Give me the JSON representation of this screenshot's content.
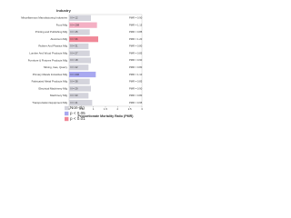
{
  "chart_data": {
    "type": "bar",
    "orientation": "horizontal",
    "title": "Industry",
    "x_label": "Proportionate Mortality Ratio (PMR)",
    "categories": [
      "Miscellaneous Manufacturing Industries",
      "Food Mfg",
      "Printing and Publishing Mfg",
      "Aluminum Mfg",
      "Rubber And Plastics Mfg",
      "Lumber And Wood Products Mfg",
      "Furniture & Fixtures Products Mfg",
      "Mining, Gas, Quarry",
      "Primary Metals Industries Mfg",
      "Fabricated Metal Products Mfg",
      "Electrical Machinery Mfg",
      "Machinery Mfg",
      "Transportation Equipment Mfg"
    ],
    "values": [
      0.9,
      1.15,
      0.85,
      1.2,
      0.8,
      0.85,
      0.9,
      0.8,
      1.1,
      0.85,
      0.9,
      0.8,
      0.95
    ],
    "value_labels": [
      "PMR = 0.90",
      "PMR = 1.15",
      "PMR = 0.85",
      "PMR = 1.20",
      "PMR = 0.80",
      "PMR = 0.85",
      "PMR = 0.90",
      "PMR = 0.80",
      "PMR = 1.10",
      "PMR = 0.85",
      "PMR = 0.90",
      "PMR = 0.80",
      "PMR = 0.95"
    ],
    "n_labels": [
      "N = 12",
      "N = 208",
      "N = 45",
      "N = 96",
      "N = 31",
      "N = 27",
      "N = 18",
      "N = 22",
      "N = 240",
      "N = 38",
      "N = 29",
      "N = 33",
      "N = 41"
    ],
    "colors": [
      "#d4d4dc",
      "#f4b0c4",
      "#d4d4dc",
      "#f08898",
      "#d4d4dc",
      "#d4d4dc",
      "#d4d4dc",
      "#d4d4dc",
      "#a8a8f0",
      "#d4d4dc",
      "#d4d4dc",
      "#d4d4dc",
      "#d4d4dc"
    ],
    "legend": [
      {
        "name": "Non-sig",
        "color": "#d4d4dc"
      },
      {
        "name": "p < 0.05",
        "color": "#a8a8f0"
      },
      {
        "name": "p < 0.01",
        "color": "#f08898"
      }
    ],
    "xlim": [
      0,
      3
    ],
    "xticks": [
      0,
      0.5,
      1,
      1.5,
      2,
      2.5,
      3
    ]
  }
}
